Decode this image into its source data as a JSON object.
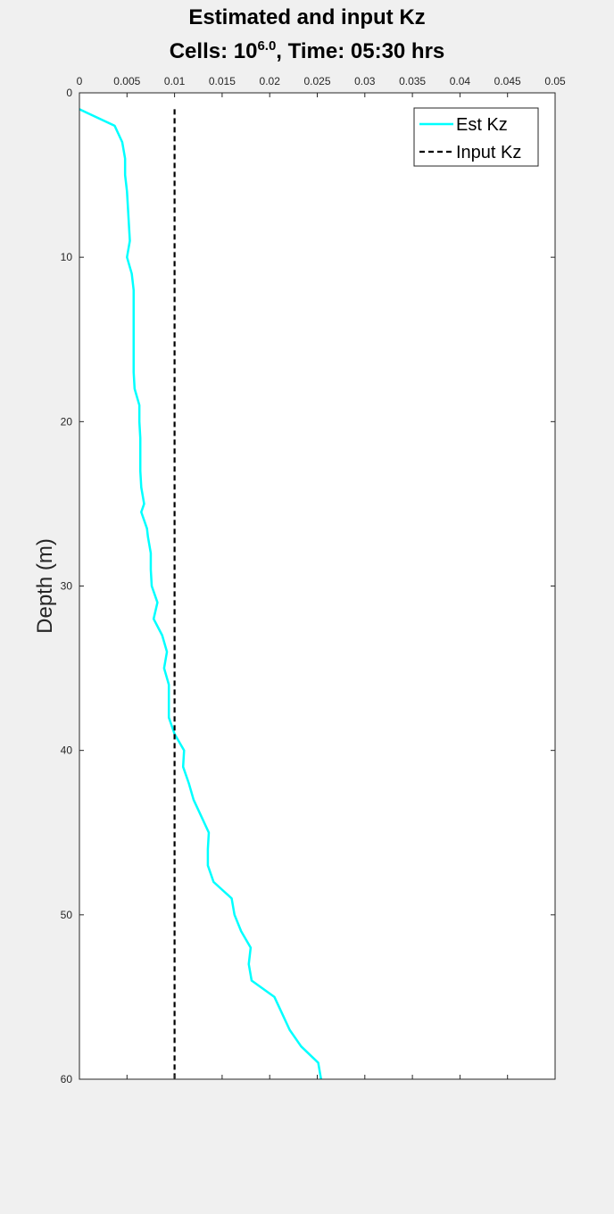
{
  "chart_data": {
    "type": "line",
    "title_line1": "Estimated and input Kz",
    "title_line2_prefix": "Cells: 10",
    "title_line2_exponent": "6.0",
    "title_line2_suffix": ", Time: 05:30 hrs",
    "xlabel": "",
    "ylabel": "Depth (m)",
    "xlim": [
      0,
      0.05
    ],
    "ylim": [
      0,
      60
    ],
    "y_reversed": true,
    "x_axis_location": "top",
    "x_ticks": [
      0,
      0.005,
      0.01,
      0.015,
      0.02,
      0.025,
      0.03,
      0.035,
      0.04,
      0.045,
      0.05
    ],
    "x_tick_labels": [
      "0",
      "0.005",
      "0.01",
      "0.015",
      "0.02",
      "0.025",
      "0.03",
      "0.035",
      "0.04",
      "0.045",
      "0.05"
    ],
    "y_ticks": [
      0,
      10,
      20,
      30,
      40,
      50,
      60
    ],
    "y_tick_labels": [
      "0",
      "10",
      "20",
      "30",
      "40",
      "50",
      "60"
    ],
    "grid": false,
    "legend_position": "top-right",
    "series": [
      {
        "name": "Est Kz",
        "color": "#00ffff",
        "style": "solid",
        "points": [
          [
            0.0,
            1
          ],
          [
            0.0037,
            2
          ],
          [
            0.0045,
            3
          ],
          [
            0.0048,
            4
          ],
          [
            0.0048,
            5
          ],
          [
            0.005,
            6
          ],
          [
            0.0051,
            7
          ],
          [
            0.0052,
            8
          ],
          [
            0.0053,
            9
          ],
          [
            0.005,
            10
          ],
          [
            0.0055,
            11
          ],
          [
            0.0057,
            12
          ],
          [
            0.0057,
            13
          ],
          [
            0.0057,
            14
          ],
          [
            0.0057,
            15
          ],
          [
            0.0057,
            16
          ],
          [
            0.0057,
            17
          ],
          [
            0.0058,
            18
          ],
          [
            0.0063,
            19
          ],
          [
            0.0063,
            20
          ],
          [
            0.0064,
            21
          ],
          [
            0.0064,
            22
          ],
          [
            0.0064,
            23
          ],
          [
            0.0065,
            24
          ],
          [
            0.0068,
            25
          ],
          [
            0.0065,
            25.5
          ],
          [
            0.0071,
            26.5
          ],
          [
            0.0072,
            27
          ],
          [
            0.0075,
            28
          ],
          [
            0.0075,
            29
          ],
          [
            0.0076,
            30
          ],
          [
            0.0082,
            31
          ],
          [
            0.0078,
            32
          ],
          [
            0.0087,
            33
          ],
          [
            0.0092,
            34
          ],
          [
            0.0089,
            35
          ],
          [
            0.0094,
            36
          ],
          [
            0.0094,
            37
          ],
          [
            0.0094,
            38
          ],
          [
            0.01,
            39
          ],
          [
            0.011,
            40
          ],
          [
            0.0109,
            41
          ],
          [
            0.0115,
            42
          ],
          [
            0.012,
            43
          ],
          [
            0.0128,
            44
          ],
          [
            0.0136,
            45
          ],
          [
            0.0135,
            46
          ],
          [
            0.0135,
            47
          ],
          [
            0.0141,
            48
          ],
          [
            0.016,
            49
          ],
          [
            0.0163,
            50
          ],
          [
            0.017,
            51
          ],
          [
            0.018,
            52
          ],
          [
            0.0178,
            53
          ],
          [
            0.0181,
            54
          ],
          [
            0.0205,
            55
          ],
          [
            0.0213,
            56
          ],
          [
            0.0221,
            57
          ],
          [
            0.0233,
            58
          ],
          [
            0.0251,
            59
          ],
          [
            0.0254,
            60
          ]
        ]
      },
      {
        "name": "Input Kz",
        "color": "#000000",
        "style": "dashed",
        "points": [
          [
            0.01,
            1
          ],
          [
            0.01,
            60
          ]
        ]
      }
    ]
  }
}
